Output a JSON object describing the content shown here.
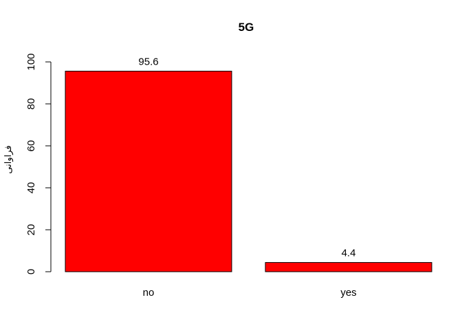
{
  "chart_data": {
    "type": "bar",
    "title": "5G",
    "ylabel": "فراوانی",
    "xlabel": "",
    "categories": [
      "no",
      "yes"
    ],
    "values": [
      95.6,
      4.4
    ],
    "data_labels": [
      "95.6",
      "4.4"
    ],
    "ylim": [
      0,
      100
    ],
    "yticks": [
      0,
      20,
      40,
      60,
      80,
      100
    ],
    "ytick_labels": [
      "0",
      "20",
      "40",
      "60",
      "80",
      "100"
    ],
    "bar_color": "#ff0000",
    "grid": false,
    "legend": "none"
  }
}
